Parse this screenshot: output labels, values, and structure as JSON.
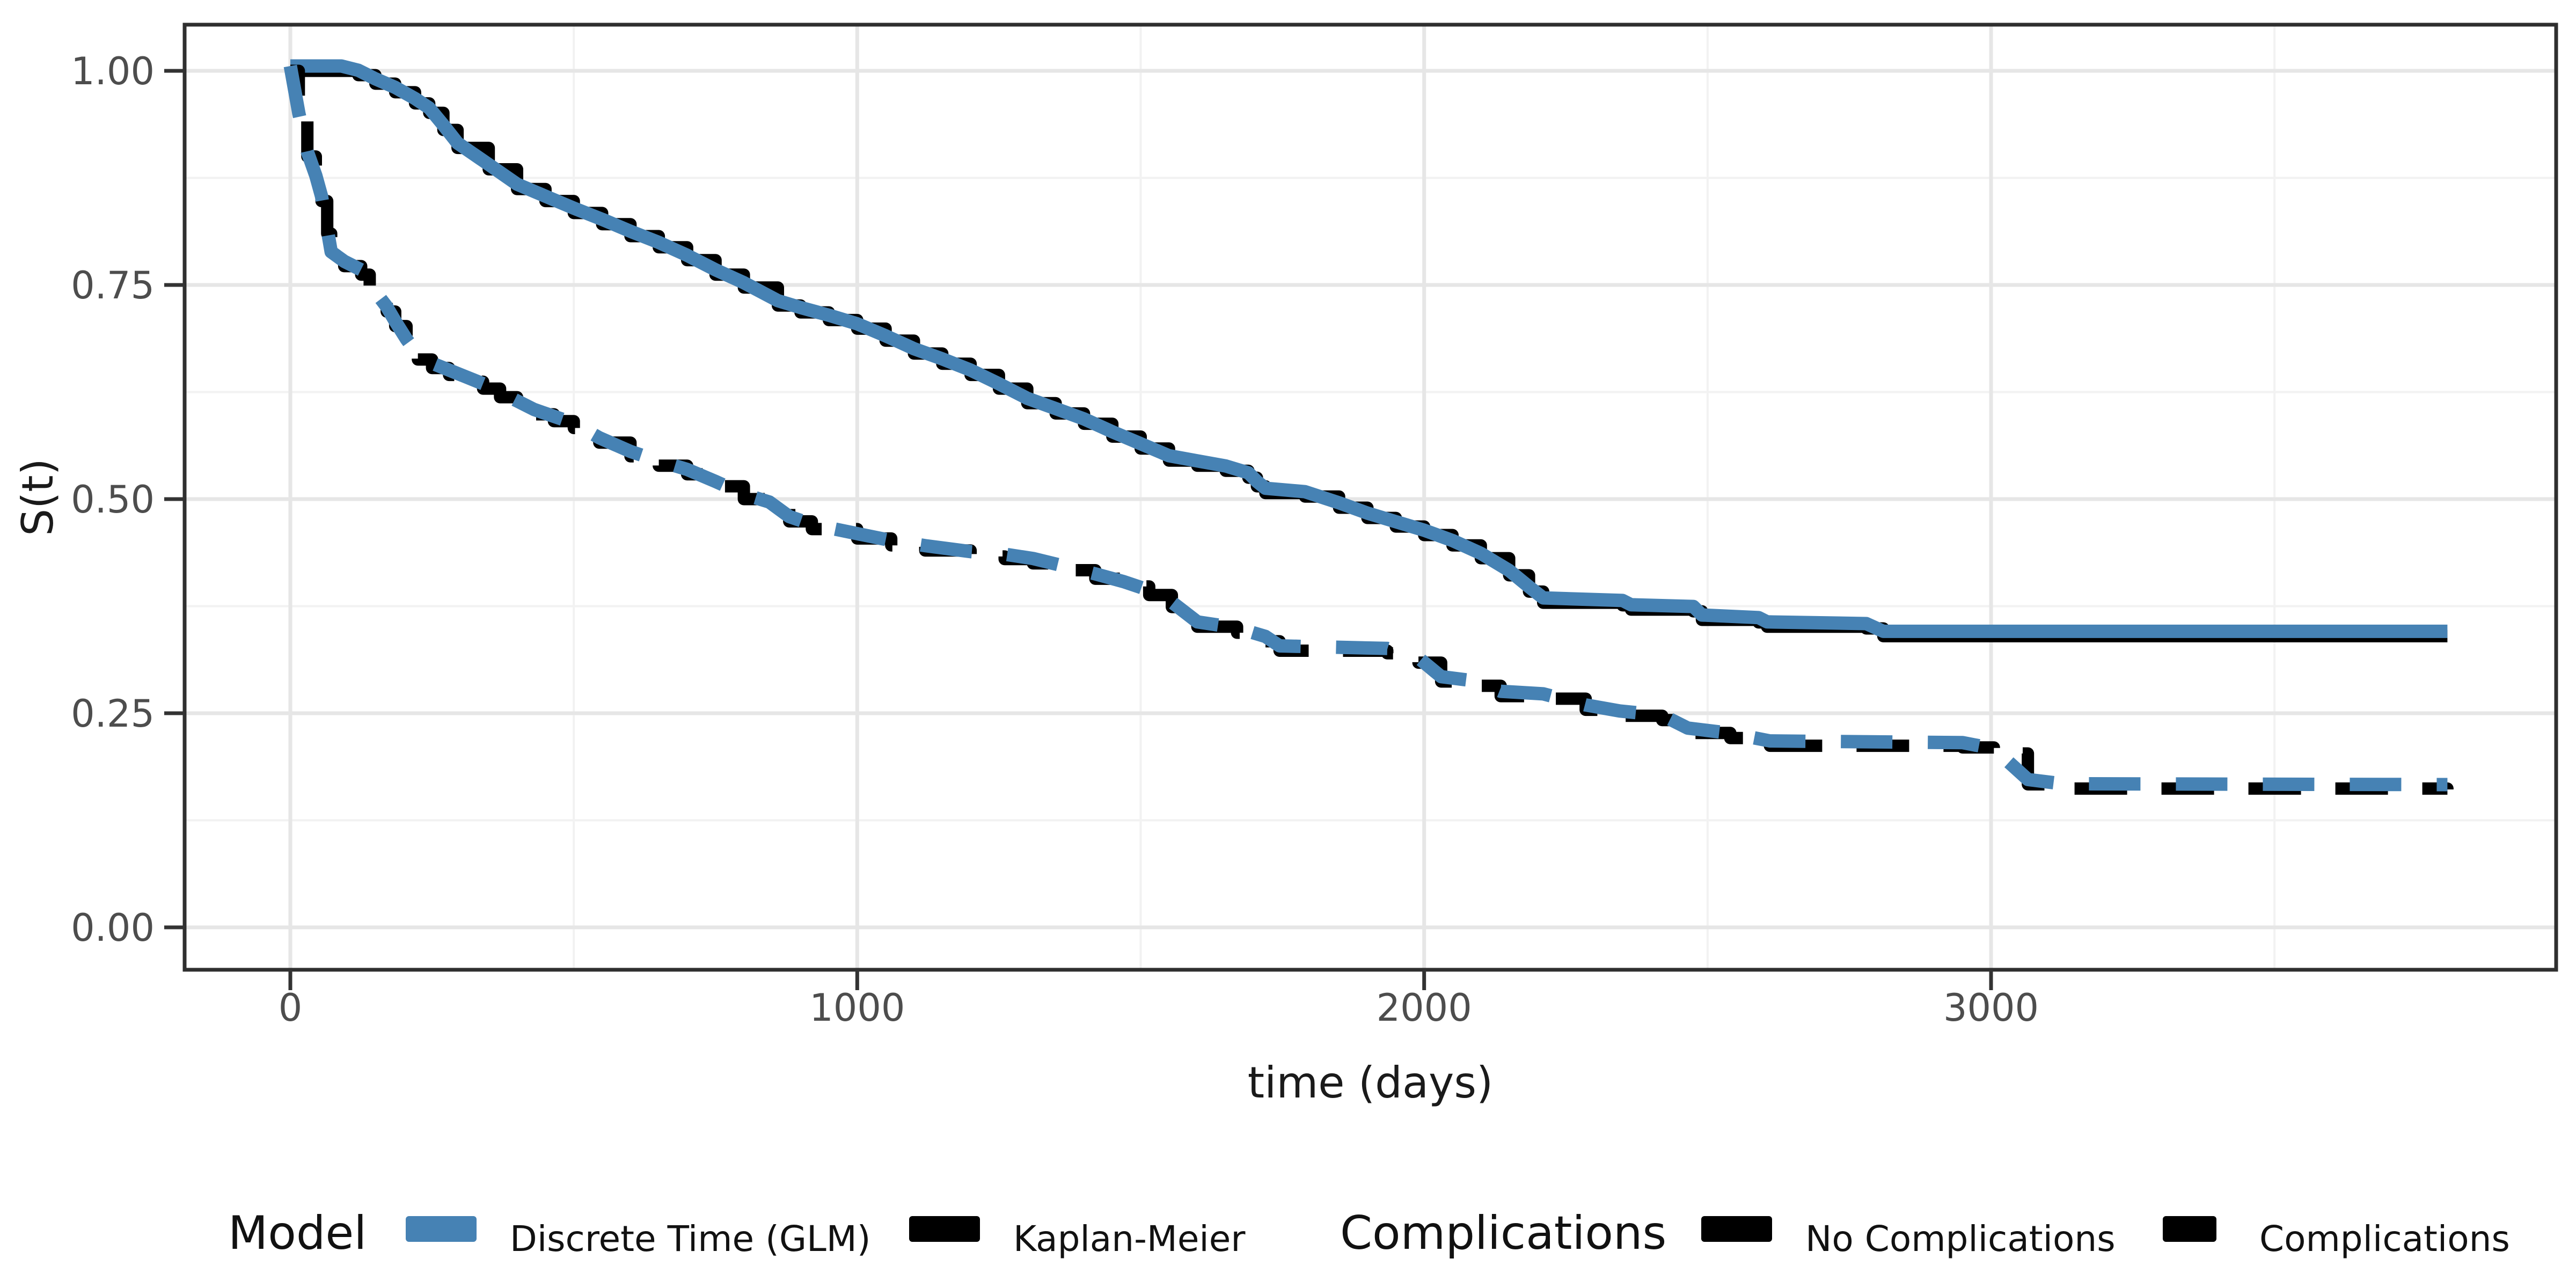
{
  "chart_data": {
    "type": "line",
    "title": "",
    "xlabel": "time (days)",
    "ylabel": "S(t)",
    "xlim": [
      0,
      3990
    ],
    "ylim": [
      0.0,
      1.05
    ],
    "grid": "major+minor",
    "legend_position": "bottom",
    "x_ticks": [
      {
        "value": 0,
        "label": "0"
      },
      {
        "value": 1000,
        "label": "1000"
      },
      {
        "value": 2000,
        "label": "2000"
      },
      {
        "value": 3000,
        "label": "3000"
      }
    ],
    "x_minor_ticks": [
      500,
      1500,
      2500,
      3500
    ],
    "y_ticks": [
      {
        "value": 1.0,
        "label": "1.00"
      },
      {
        "value": 0.75,
        "label": "0.75"
      },
      {
        "value": 0.5,
        "label": "0.50"
      },
      {
        "value": 0.25,
        "label": "0.25"
      },
      {
        "value": 0.0,
        "label": "0.00"
      }
    ],
    "y_minor_ticks": [
      0.125,
      0.375,
      0.625,
      0.875
    ],
    "curves": {
      "no_complications": [
        [
          0,
          1.0
        ],
        [
          90,
          1.0
        ],
        [
          120,
          0.995
        ],
        [
          150,
          0.985
        ],
        [
          185,
          0.975
        ],
        [
          220,
          0.962
        ],
        [
          245,
          0.951
        ],
        [
          270,
          0.931
        ],
        [
          295,
          0.91
        ],
        [
          350,
          0.885
        ],
        [
          400,
          0.862
        ],
        [
          450,
          0.848
        ],
        [
          500,
          0.834
        ],
        [
          550,
          0.821
        ],
        [
          600,
          0.807
        ],
        [
          650,
          0.794
        ],
        [
          700,
          0.779
        ],
        [
          750,
          0.762
        ],
        [
          800,
          0.747
        ],
        [
          860,
          0.726
        ],
        [
          900,
          0.718
        ],
        [
          950,
          0.709
        ],
        [
          1000,
          0.699
        ],
        [
          1050,
          0.685
        ],
        [
          1100,
          0.67
        ],
        [
          1150,
          0.658
        ],
        [
          1200,
          0.645
        ],
        [
          1250,
          0.629
        ],
        [
          1300,
          0.612
        ],
        [
          1350,
          0.6
        ],
        [
          1400,
          0.588
        ],
        [
          1450,
          0.573
        ],
        [
          1500,
          0.559
        ],
        [
          1550,
          0.545
        ],
        [
          1600,
          0.539
        ],
        [
          1650,
          0.533
        ],
        [
          1690,
          0.525
        ],
        [
          1705,
          0.515
        ],
        [
          1720,
          0.507
        ],
        [
          1790,
          0.503
        ],
        [
          1850,
          0.49
        ],
        [
          1900,
          0.478
        ],
        [
          1950,
          0.468
        ],
        [
          2000,
          0.458
        ],
        [
          2050,
          0.446
        ],
        [
          2100,
          0.431
        ],
        [
          2150,
          0.411
        ],
        [
          2185,
          0.392
        ],
        [
          2210,
          0.379
        ],
        [
          2350,
          0.376
        ],
        [
          2365,
          0.371
        ],
        [
          2475,
          0.369
        ],
        [
          2490,
          0.359
        ],
        [
          2590,
          0.356
        ],
        [
          2605,
          0.351
        ],
        [
          2780,
          0.349
        ],
        [
          2810,
          0.34
        ],
        [
          3805,
          0.34
        ]
      ],
      "complications": [
        [
          0,
          1.0
        ],
        [
          15,
          0.945
        ],
        [
          30,
          0.9
        ],
        [
          45,
          0.872
        ],
        [
          55,
          0.848
        ],
        [
          65,
          0.81
        ],
        [
          72,
          0.783
        ],
        [
          95,
          0.772
        ],
        [
          125,
          0.762
        ],
        [
          140,
          0.747
        ],
        [
          155,
          0.732
        ],
        [
          170,
          0.719
        ],
        [
          185,
          0.702
        ],
        [
          205,
          0.681
        ],
        [
          225,
          0.663
        ],
        [
          250,
          0.653
        ],
        [
          280,
          0.645
        ],
        [
          310,
          0.637
        ],
        [
          340,
          0.629
        ],
        [
          370,
          0.619
        ],
        [
          400,
          0.609
        ],
        [
          430,
          0.599
        ],
        [
          465,
          0.591
        ],
        [
          500,
          0.583
        ],
        [
          545,
          0.566
        ],
        [
          600,
          0.55
        ],
        [
          650,
          0.539
        ],
        [
          700,
          0.529
        ],
        [
          750,
          0.515
        ],
        [
          800,
          0.5
        ],
        [
          845,
          0.491
        ],
        [
          880,
          0.474
        ],
        [
          920,
          0.465
        ],
        [
          1000,
          0.454
        ],
        [
          1060,
          0.446
        ],
        [
          1120,
          0.44
        ],
        [
          1200,
          0.433
        ],
        [
          1260,
          0.43
        ],
        [
          1310,
          0.425
        ],
        [
          1360,
          0.417
        ],
        [
          1420,
          0.407
        ],
        [
          1470,
          0.398
        ],
        [
          1515,
          0.388
        ],
        [
          1555,
          0.374
        ],
        [
          1600,
          0.351
        ],
        [
          1670,
          0.344
        ],
        [
          1720,
          0.334
        ],
        [
          1745,
          0.323
        ],
        [
          1935,
          0.32
        ],
        [
          1990,
          0.309
        ],
        [
          2030,
          0.287
        ],
        [
          2090,
          0.282
        ],
        [
          2135,
          0.27
        ],
        [
          2210,
          0.267
        ],
        [
          2285,
          0.254
        ],
        [
          2345,
          0.247
        ],
        [
          2420,
          0.242
        ],
        [
          2465,
          0.227
        ],
        [
          2540,
          0.221
        ],
        [
          2610,
          0.212
        ],
        [
          2950,
          0.21
        ],
        [
          3005,
          0.203
        ],
        [
          3065,
          0.167
        ],
        [
          3125,
          0.162
        ],
        [
          3805,
          0.161
        ]
      ]
    },
    "series": [
      {
        "name": "Kaplan-Meier / No Complications",
        "model": "Kaplan-Meier",
        "group": "No Complications",
        "curve": "no_complications",
        "color": "#000000",
        "linetype": "solid",
        "render": "step"
      },
      {
        "name": "Discrete Time (GLM) / No Complications",
        "model": "Discrete Time (GLM)",
        "group": "No Complications",
        "curve": "no_complications",
        "color": "#4682B4",
        "linetype": "solid",
        "render": "line"
      },
      {
        "name": "Kaplan-Meier / Complications",
        "model": "Kaplan-Meier",
        "group": "Complications",
        "curve": "complications",
        "color": "#000000",
        "linetype": "dashed",
        "render": "step"
      },
      {
        "name": "Discrete Time (GLM) / Complications",
        "model": "Discrete Time (GLM)",
        "group": "Complications",
        "curve": "complications",
        "color": "#4682B4",
        "linetype": "dashed",
        "render": "line"
      }
    ]
  },
  "axes": {
    "x_title": "time (days)",
    "y_title": "S(t)"
  },
  "legend": {
    "model_title": "Model",
    "glm_label": "Discrete Time (GLM)",
    "km_label": "Kaplan-Meier",
    "complications_title": "Complications",
    "no_complications_label": "No Complications",
    "complications_label": "Complications"
  },
  "colors": {
    "glm_blue": "#4682B4",
    "km_black": "#000000",
    "grid_major": "#E6E6E6",
    "grid_minor": "#F2F2F2",
    "panel_border": "#2F2F2F",
    "tick_text": "#4D4D4D",
    "title_text": "#1A1A1A"
  }
}
